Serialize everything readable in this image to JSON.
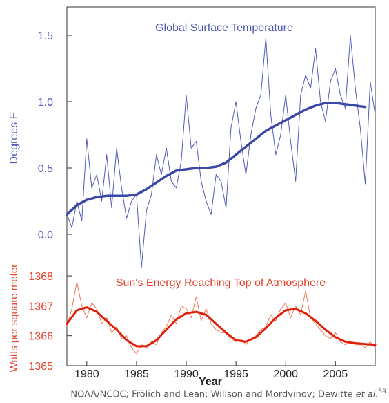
{
  "chart_data": [
    {
      "type": "line",
      "title": "Global Surface Temperature",
      "xlabel": "Year",
      "ylabel": "Degrees F",
      "xlim": [
        1978,
        2009
      ],
      "ylim": [
        -0.2,
        1.7
      ],
      "x_ticks": [
        "1980",
        "1985",
        "1990",
        "1995",
        "2000",
        "2005"
      ],
      "y_ticks": [
        "0.0",
        "0.5",
        "1.0",
        "1.5"
      ],
      "color": "#4f5bb8",
      "smooth_series": {
        "x": [
          1978,
          1979,
          1980,
          1981,
          1982,
          1983,
          1984,
          1985,
          1986,
          1987,
          1988,
          1989,
          1990,
          1991,
          1992,
          1993,
          1994,
          1995,
          1996,
          1997,
          1998,
          1999,
          2000,
          2001,
          2002,
          2003,
          2004,
          2005,
          2006,
          2007,
          2008
        ],
        "y": [
          0.15,
          0.22,
          0.26,
          0.28,
          0.29,
          0.29,
          0.29,
          0.3,
          0.34,
          0.39,
          0.44,
          0.48,
          0.49,
          0.5,
          0.5,
          0.51,
          0.54,
          0.6,
          0.66,
          0.72,
          0.78,
          0.82,
          0.86,
          0.9,
          0.94,
          0.97,
          0.99,
          0.99,
          0.98,
          0.97,
          0.96
        ]
      },
      "monthly_series": {
        "x": [
          1978.0,
          1978.5,
          1979.0,
          1979.5,
          1980.0,
          1980.5,
          1981.0,
          1981.5,
          1982.0,
          1982.5,
          1983.0,
          1983.5,
          1984.0,
          1984.5,
          1985.0,
          1985.5,
          1986.0,
          1986.5,
          1987.0,
          1987.5,
          1988.0,
          1988.5,
          1989.0,
          1989.5,
          1990.0,
          1990.5,
          1991.0,
          1991.5,
          1992.0,
          1992.5,
          1993.0,
          1993.5,
          1994.0,
          1994.5,
          1995.0,
          1995.5,
          1996.0,
          1996.5,
          1997.0,
          1997.5,
          1998.0,
          1998.5,
          1999.0,
          1999.5,
          2000.0,
          2000.5,
          2001.0,
          2001.5,
          2002.0,
          2002.5,
          2003.0,
          2003.5,
          2004.0,
          2004.5,
          2005.0,
          2005.5,
          2006.0,
          2006.5,
          2007.0,
          2007.5,
          2008.0,
          2008.5,
          2009.0
        ],
        "y": [
          0.15,
          0.05,
          0.25,
          0.1,
          0.72,
          0.35,
          0.45,
          0.25,
          0.6,
          0.2,
          0.65,
          0.35,
          0.12,
          0.25,
          0.3,
          -0.25,
          0.18,
          0.3,
          0.6,
          0.45,
          0.65,
          0.4,
          0.35,
          0.55,
          1.05,
          0.65,
          0.7,
          0.4,
          0.25,
          0.15,
          0.45,
          0.4,
          0.2,
          0.8,
          1.0,
          0.7,
          0.45,
          0.75,
          0.95,
          1.05,
          1.48,
          0.9,
          0.6,
          0.75,
          1.05,
          0.7,
          0.4,
          1.05,
          1.2,
          1.1,
          1.4,
          1.0,
          0.85,
          1.15,
          1.25,
          1.05,
          0.95,
          1.5,
          1.1,
          0.8,
          0.38,
          1.15,
          0.9
        ]
      }
    },
    {
      "type": "line",
      "title": "Sun's Energy Reaching Top of Atmosphere",
      "xlabel": "Year",
      "ylabel": "Watts per square meter",
      "xlim": [
        1978,
        2009
      ],
      "ylim": [
        1365,
        1368
      ],
      "x_ticks": [
        "1980",
        "1985",
        "1990",
        "1995",
        "2000",
        "2005"
      ],
      "y_ticks": [
        "1365",
        "1366",
        "1367",
        "1368"
      ],
      "color": "#e8402a",
      "smooth_series": {
        "x": [
          1978,
          1979,
          1980,
          1981,
          1982,
          1983,
          1984,
          1985,
          1986,
          1987,
          1988,
          1989,
          1990,
          1991,
          1992,
          1993,
          1994,
          1995,
          1996,
          1997,
          1998,
          1999,
          2000,
          2001,
          2002,
          2003,
          2004,
          2005,
          2006,
          2007,
          2008,
          2009
        ],
        "y": [
          1366.4,
          1366.85,
          1366.95,
          1366.8,
          1366.5,
          1366.2,
          1365.85,
          1365.65,
          1365.65,
          1365.85,
          1366.2,
          1366.55,
          1366.75,
          1366.8,
          1366.7,
          1366.4,
          1366.1,
          1365.85,
          1365.8,
          1365.95,
          1366.25,
          1366.6,
          1366.85,
          1366.9,
          1366.75,
          1366.5,
          1366.2,
          1365.95,
          1365.8,
          1365.75,
          1365.72,
          1365.7
        ]
      },
      "daily_series": {
        "x": [
          1978.0,
          1978.5,
          1979.0,
          1979.5,
          1980.0,
          1980.5,
          1981.0,
          1981.5,
          1982.0,
          1982.5,
          1983.0,
          1983.5,
          1984.0,
          1984.5,
          1985.0,
          1985.5,
          1986.0,
          1986.5,
          1987.0,
          1987.5,
          1988.0,
          1988.5,
          1989.0,
          1989.5,
          1990.0,
          1990.5,
          1991.0,
          1991.5,
          1992.0,
          1992.5,
          1993.0,
          1993.5,
          1994.0,
          1994.5,
          1995.0,
          1995.5,
          1996.0,
          1996.5,
          1997.0,
          1997.5,
          1998.0,
          1998.5,
          1999.0,
          1999.5,
          2000.0,
          2000.5,
          2001.0,
          2001.5,
          2002.0,
          2002.5,
          2003.0,
          2003.5,
          2004.0,
          2004.5,
          2005.0,
          2005.5,
          2006.0,
          2006.5,
          2007.0,
          2007.5,
          2008.0,
          2008.5,
          2009.0
        ],
        "y": [
          1366.3,
          1366.9,
          1367.8,
          1367.0,
          1366.6,
          1367.1,
          1366.9,
          1366.4,
          1366.6,
          1366.1,
          1366.3,
          1365.9,
          1366.0,
          1365.6,
          1365.4,
          1365.7,
          1365.6,
          1365.8,
          1365.7,
          1366.1,
          1366.3,
          1366.7,
          1366.4,
          1367.0,
          1366.9,
          1366.6,
          1367.3,
          1366.5,
          1366.9,
          1366.4,
          1366.2,
          1366.1,
          1366.1,
          1365.9,
          1365.8,
          1365.9,
          1365.7,
          1365.9,
          1366.0,
          1366.2,
          1366.3,
          1366.7,
          1366.5,
          1366.9,
          1367.1,
          1366.6,
          1367.0,
          1366.7,
          1367.5,
          1366.6,
          1366.4,
          1366.2,
          1366.0,
          1365.9,
          1366.1,
          1365.8,
          1365.7,
          1365.8,
          1365.7,
          1365.7,
          1365.6,
          1365.8,
          1365.6
        ]
      }
    }
  ],
  "caption": {
    "text": "NOAA/NCDC; Frölich and Lean; Willson and Mordvinov; Dewitte ",
    "italic": "et al.",
    "sup": "59"
  }
}
